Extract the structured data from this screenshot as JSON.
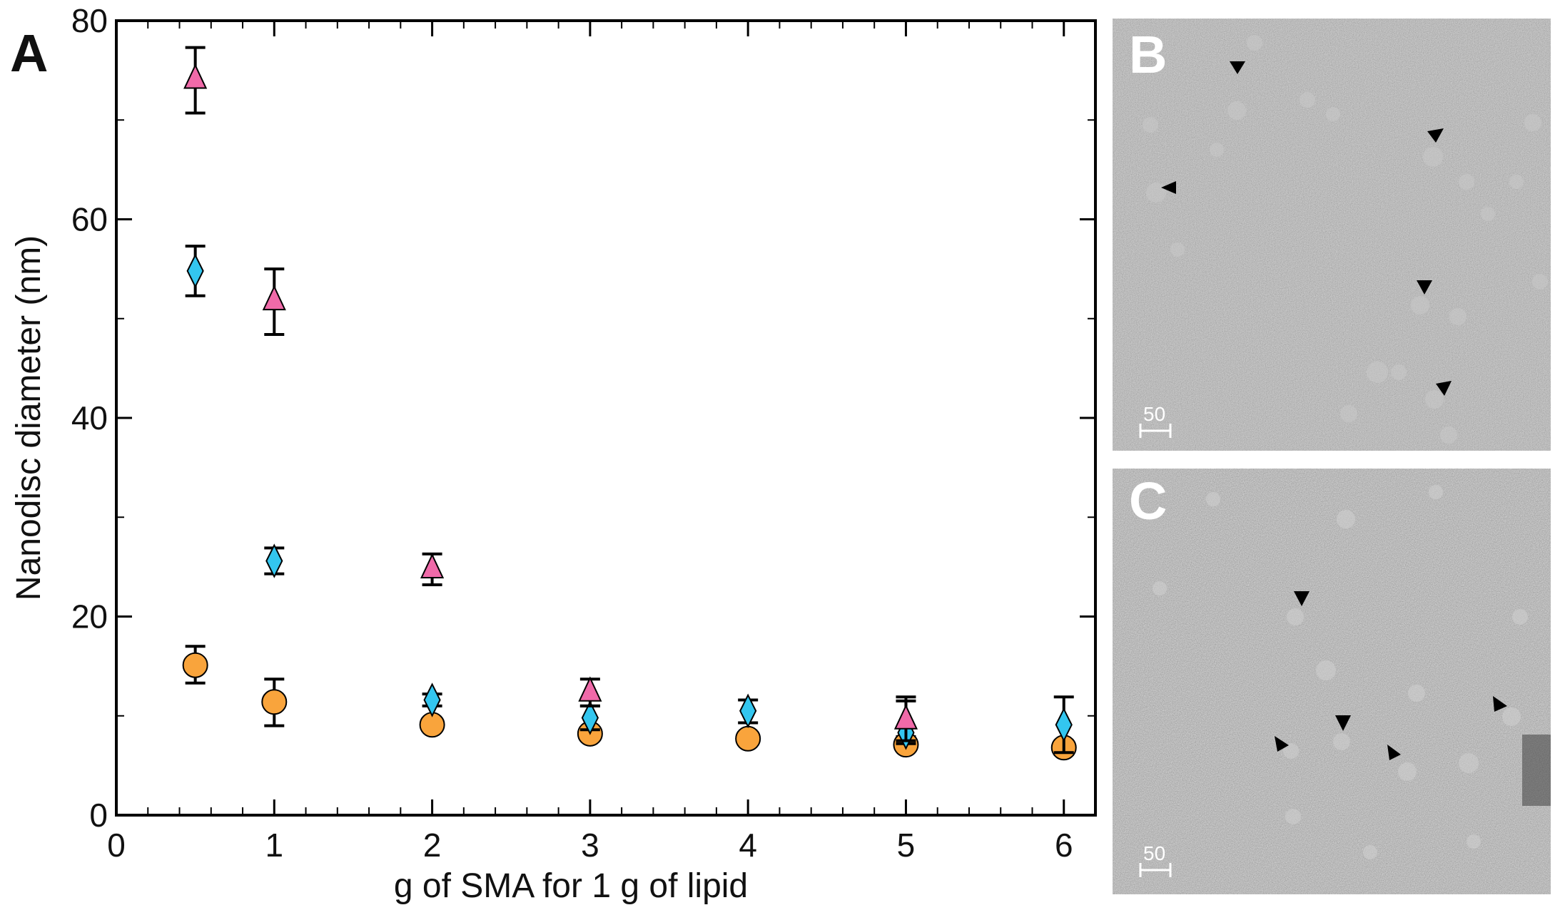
{
  "panels": {
    "a": {
      "letter": "A"
    },
    "b": {
      "letter": "B",
      "scale_label": "50"
    },
    "c": {
      "letter": "C",
      "scale_label": "50"
    }
  },
  "chart_data": {
    "type": "scatter",
    "title": "",
    "xlabel": "g of SMA for 1 g of lipid",
    "ylabel": "Nanodisc diameter (nm)",
    "xlim": [
      0,
      6.2
    ],
    "ylim": [
      0,
      80
    ],
    "xticks": [
      0,
      1,
      2,
      3,
      4,
      5,
      6
    ],
    "yticks": [
      0,
      20,
      40,
      60,
      80
    ],
    "grid": false,
    "legend": "none",
    "series": [
      {
        "marker": "triangle",
        "color": "#f06aa9",
        "points": [
          {
            "x": 0.5,
            "y": 74,
            "err_low": 70.7,
            "err_high": 77.3
          },
          {
            "x": 1,
            "y": 51.7,
            "err_low": 48.4,
            "err_high": 55
          },
          {
            "x": 2,
            "y": 24.7,
            "err_low": 23.2,
            "err_high": 26.3
          },
          {
            "x": 3,
            "y": 12.3,
            "err_low": 11,
            "err_high": 13.7
          },
          {
            "x": 5,
            "y": 9.5,
            "err_low": 7.5,
            "err_high": 11.5
          }
        ]
      },
      {
        "marker": "diamond",
        "color": "#33c6ef",
        "points": [
          {
            "x": 0.5,
            "y": 54.8,
            "err_low": 52.3,
            "err_high": 57.3
          },
          {
            "x": 1,
            "y": 25.6,
            "err_low": 24.3,
            "err_high": 26.9
          },
          {
            "x": 2,
            "y": 11.6,
            "err_low": 11,
            "err_high": 12.2
          },
          {
            "x": 3,
            "y": 9.8,
            "err_low": 8.6,
            "err_high": 11
          },
          {
            "x": 4,
            "y": 10.5,
            "err_low": 9.3,
            "err_high": 11.6
          },
          {
            "x": 5,
            "y": 8.3,
            "err_low": 7.2,
            "err_high": 11.9
          },
          {
            "x": 6,
            "y": 9.1,
            "err_low": 6.3,
            "err_high": 11.9
          }
        ]
      },
      {
        "marker": "circle",
        "color": "#f9a43c",
        "points": [
          {
            "x": 0.5,
            "y": 15.1,
            "err_low": 13.3,
            "err_high": 17
          },
          {
            "x": 1,
            "y": 11.4,
            "err_low": 9,
            "err_high": 13.7
          },
          {
            "x": 2,
            "y": 9.1,
            "err_low": 8.8,
            "err_high": 9.4
          },
          {
            "x": 3,
            "y": 8.2,
            "err_low": 7.7,
            "err_high": 8.7
          },
          {
            "x": 4,
            "y": 7.7,
            "err_low": 7.3,
            "err_high": 8.1
          },
          {
            "x": 5,
            "y": 7.1,
            "err_low": 6.8,
            "err_high": 7.9
          },
          {
            "x": 6,
            "y": 6.8,
            "err_low": 6.1,
            "err_high": 7.5
          }
        ]
      }
    ]
  }
}
